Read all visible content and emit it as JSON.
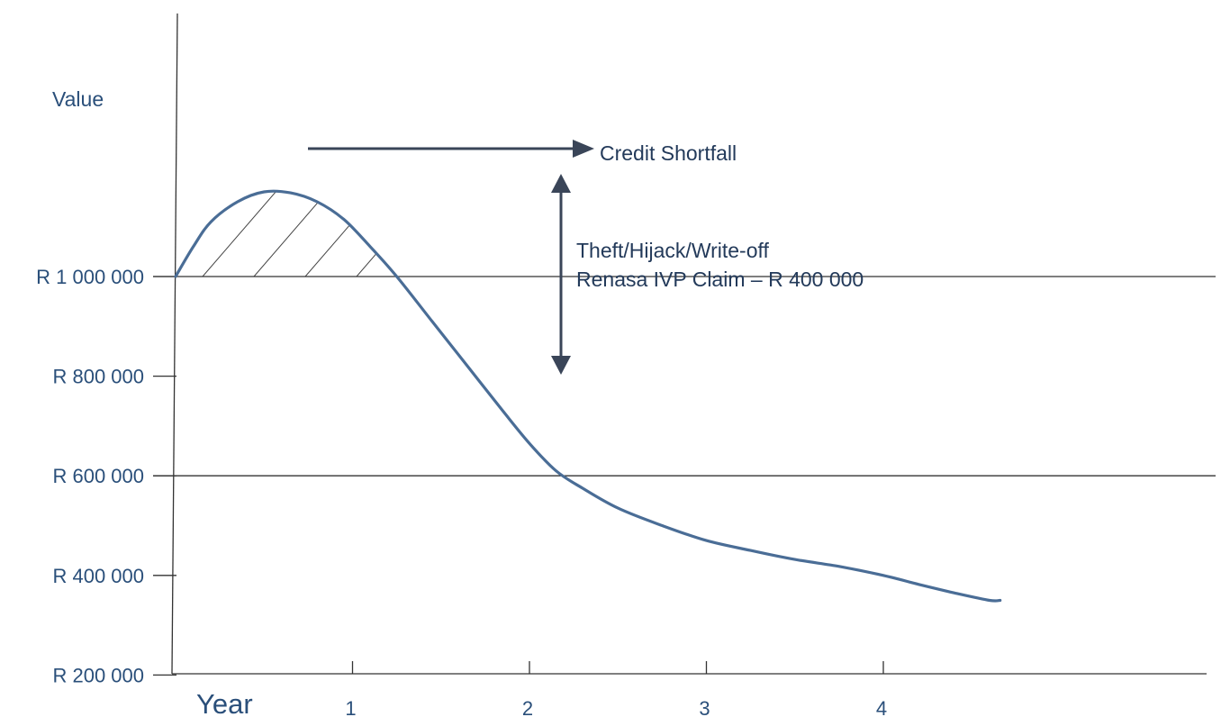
{
  "chart_data": {
    "type": "line",
    "ylabel": "Value",
    "xlabel": "Year",
    "x_ticks": [
      "1",
      "2",
      "3",
      "4"
    ],
    "y_ticks": [
      {
        "value": 1000000,
        "label": "R 1 000 000"
      },
      {
        "value": 800000,
        "label": "R 800 000"
      },
      {
        "value": 600000,
        "label": "R 600 000"
      },
      {
        "value": 400000,
        "label": "R 400 000"
      },
      {
        "value": 200000,
        "label": "R 200 000"
      }
    ],
    "xlim": [
      0,
      5.8
    ],
    "ylim": [
      0,
      1120000
    ],
    "reference_lines": [
      1000000,
      600000
    ],
    "series": [
      {
        "color": "#4a6d96",
        "points": [
          [
            0.0,
            1000000
          ],
          [
            0.1,
            1060000
          ],
          [
            0.2,
            1110000
          ],
          [
            0.35,
            1150000
          ],
          [
            0.5,
            1170000
          ],
          [
            0.65,
            1168000
          ],
          [
            0.8,
            1150000
          ],
          [
            0.95,
            1115000
          ],
          [
            1.1,
            1060000
          ],
          [
            1.25,
            1000000
          ],
          [
            1.45,
            910000
          ],
          [
            1.65,
            820000
          ],
          [
            1.85,
            730000
          ],
          [
            2.0,
            665000
          ],
          [
            2.15,
            610000
          ],
          [
            2.3,
            575000
          ],
          [
            2.5,
            535000
          ],
          [
            2.75,
            500000
          ],
          [
            3.0,
            470000
          ],
          [
            3.25,
            450000
          ],
          [
            3.5,
            432000
          ],
          [
            3.75,
            418000
          ],
          [
            4.0,
            400000
          ],
          [
            4.2,
            382000
          ],
          [
            4.4,
            365000
          ],
          [
            4.6,
            350000
          ],
          [
            4.66,
            350000
          ]
        ]
      }
    ],
    "annotations": [
      {
        "text": "Credit Shortfall"
      },
      {
        "lines": [
          "Theft/Hijack/Write-off",
          "Renasa IVP Claim – R 400 000"
        ]
      }
    ],
    "hatched_region": "curve above R 1 000 000",
    "grid": false,
    "colors": {
      "axis_text": "#2a4f7a",
      "curve": "#4a6d96",
      "arrow": "#3a4558",
      "lines": "#333333"
    }
  }
}
